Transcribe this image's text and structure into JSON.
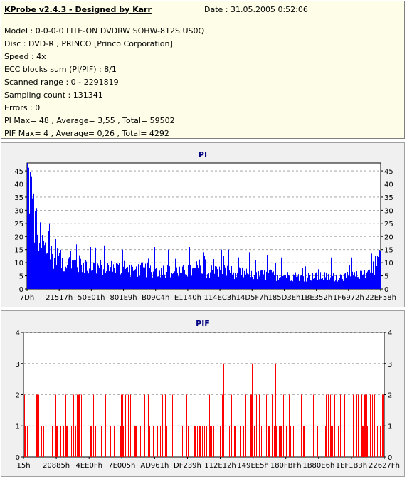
{
  "header": {
    "title": "KProbe v2.4.3 - Designed by Karr",
    "date": "Date : 31.05.2005 0:52:06",
    "lines": [
      "Model : 0-0-0-0 LITE-ON DVDRW SOHW-812S  US0Q",
      "Disc : DVD-R , PRINCO [Princo Corporation]",
      "Speed : 4x",
      "ECC blocks sum (PI/PIF) : 8/1",
      "Scanned range : 0 - 2291819",
      "Sampling count : 131341",
      "Errors : 0",
      "PI Max= 48 , Average= 3,55 , Total= 59502",
      "PIF Max= 4 , Average= 0,26 , Total= 4292"
    ]
  },
  "colors": {
    "pi": "#0000ff",
    "pif": "#ff0000",
    "title": "#000080",
    "plot_bg": "#ffffff",
    "panel_bg": "#f0f0f0"
  },
  "chart_data": [
    {
      "type": "bar",
      "title": "PI",
      "y_ticks": [
        0,
        5,
        10,
        15,
        20,
        25,
        30,
        35,
        40,
        45
      ],
      "ylim": [
        0,
        48
      ],
      "x_ticks": [
        "7Dh",
        "21517h",
        "50E01h",
        "801E9h",
        "B09C4h",
        "E1140h",
        "114EC3h",
        "14D5F7h",
        "185D3Eh",
        "1BE352h",
        "1F6972h",
        "22EF58h"
      ],
      "grid": true,
      "max": 48,
      "average": 3.55,
      "baseline_profile": {
        "x": [
          0,
          0.01,
          0.02,
          0.04,
          0.07,
          0.1,
          0.15,
          0.2,
          0.3,
          0.4,
          0.5,
          0.55,
          0.6,
          0.7,
          0.8,
          0.9,
          0.95,
          0.97,
          0.99,
          1.0
        ],
        "y": [
          46,
          40,
          28,
          18,
          14,
          11,
          10,
          9,
          8,
          7.5,
          7,
          7.5,
          6.5,
          5.5,
          5,
          5,
          5.5,
          7,
          11,
          16
        ]
      },
      "spikes": [
        {
          "x": 0.06,
          "y": 22
        },
        {
          "x": 0.08,
          "y": 19
        },
        {
          "x": 0.1,
          "y": 17
        },
        {
          "x": 0.14,
          "y": 17
        },
        {
          "x": 0.18,
          "y": 16
        },
        {
          "x": 0.22,
          "y": 16
        },
        {
          "x": 0.27,
          "y": 15
        },
        {
          "x": 0.31,
          "y": 15
        },
        {
          "x": 0.36,
          "y": 16
        },
        {
          "x": 0.4,
          "y": 15
        },
        {
          "x": 0.46,
          "y": 16
        },
        {
          "x": 0.5,
          "y": 14
        },
        {
          "x": 0.55,
          "y": 15
        },
        {
          "x": 0.57,
          "y": 15
        },
        {
          "x": 0.63,
          "y": 14
        },
        {
          "x": 0.68,
          "y": 13
        },
        {
          "x": 0.72,
          "y": 12
        },
        {
          "x": 0.8,
          "y": 12
        },
        {
          "x": 0.86,
          "y": 12
        },
        {
          "x": 0.92,
          "y": 12
        }
      ]
    },
    {
      "type": "bar",
      "title": "PIF",
      "y_ticks": [
        0,
        1,
        2,
        3,
        4
      ],
      "ylim": [
        0,
        4
      ],
      "x_ticks": [
        "15h",
        "20885h",
        "4EE0Fh",
        "7E005h",
        "AD961h",
        "DF239h",
        "112E12h",
        "149EE5h",
        "180FBFh",
        "1B80E6h",
        "1EF1B3h",
        "22627Fh"
      ],
      "grid": true,
      "max": 4,
      "average": 0.26,
      "peaks": [
        {
          "x": 0.1,
          "y": 4
        },
        {
          "x": 0.555,
          "y": 3
        },
        {
          "x": 0.635,
          "y": 3
        },
        {
          "x": 0.7,
          "y": 3
        }
      ]
    }
  ]
}
